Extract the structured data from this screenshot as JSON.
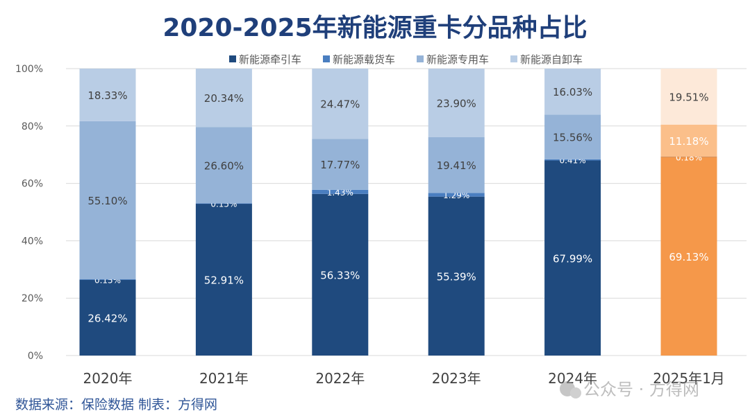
{
  "chart_data": {
    "type": "bar",
    "stacked": true,
    "title": "2020-2025年新能源重卡分品种占比",
    "categories": [
      "2020年",
      "2021年",
      "2022年",
      "2023年",
      "2024年",
      "2025年1月"
    ],
    "series": [
      {
        "name": "新能源牵引车",
        "values": [
          26.42,
          52.91,
          56.33,
          55.39,
          67.99,
          69.13
        ],
        "labels": [
          "26.42%",
          "52.91%",
          "56.33%",
          "55.39%",
          "67.99%",
          "69.13%"
        ]
      },
      {
        "name": "新能源载货车",
        "values": [
          0.15,
          0.15,
          1.43,
          1.29,
          0.41,
          0.18
        ],
        "labels": [
          "0.15%",
          "0.15%",
          "1.43%",
          "1.29%",
          "0.41%",
          "0.18%"
        ]
      },
      {
        "name": "新能源专用车",
        "values": [
          55.1,
          26.6,
          17.77,
          19.41,
          15.56,
          11.18
        ],
        "labels": [
          "55.10%",
          "26.60%",
          "17.77%",
          "19.41%",
          "15.56%",
          "11.18%"
        ]
      },
      {
        "name": "新能源自卸车",
        "values": [
          18.33,
          20.34,
          24.47,
          23.9,
          16.03,
          19.51
        ],
        "labels": [
          "18.33%",
          "20.34%",
          "24.47%",
          "23.90%",
          "16.03%",
          "19.51%"
        ]
      }
    ],
    "ylim": [
      0,
      100
    ],
    "yticks": [
      "0%",
      "20%",
      "40%",
      "60%",
      "80%",
      "100%"
    ],
    "grid": true,
    "legend_position": "top",
    "colors": [
      "#1f4a7e",
      "#4a7ec0",
      "#95b3d7",
      "#b9cde5"
    ],
    "highlight_colors": [
      "#f5984a",
      "#c57a42",
      "#fbbf8a",
      "#fde9d9"
    ],
    "highlight_category": "2025年1月"
  },
  "footer": {
    "source": "数据来源：保险数据  制表：方得网",
    "watermark": "公众号 · 方得网"
  },
  "colors": {
    "title": "#1f3f7a",
    "source": "#2f5597"
  }
}
